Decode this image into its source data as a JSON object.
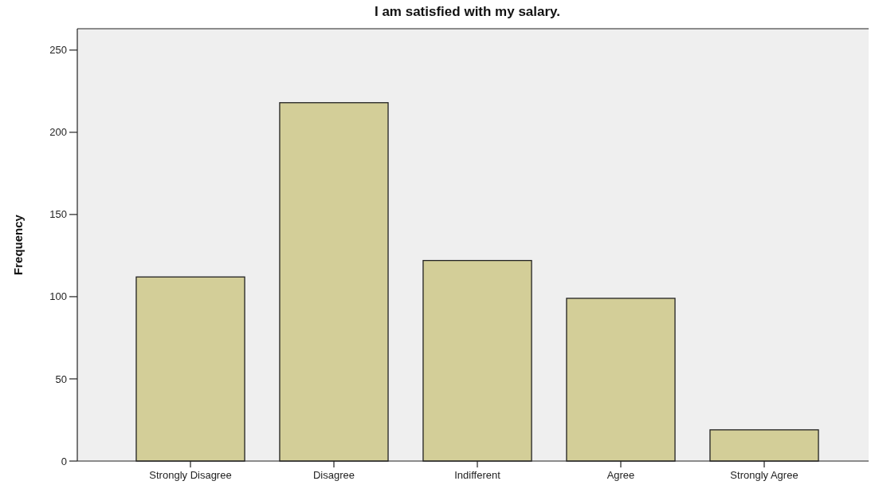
{
  "chart_data": {
    "type": "bar",
    "title": "I am satisfied with my salary.",
    "ylabel": "Frequency",
    "categories": [
      "Strongly Disagree",
      "Disagree",
      "Indifferent",
      "Agree",
      "Strongly Agree"
    ],
    "values": [
      112,
      218,
      122,
      99,
      19
    ],
    "color": "#d3ce98",
    "ylim": [
      0,
      263
    ],
    "yticks": [
      0,
      50,
      100,
      150,
      200,
      250
    ],
    "grid": false
  }
}
